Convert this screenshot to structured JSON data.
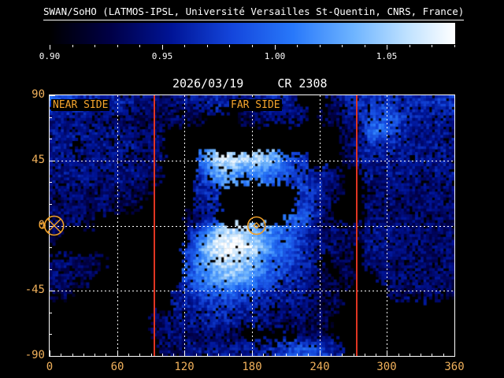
{
  "figure": {
    "title": "SWAN/SoHO (LATMOS-IPSL, Université Versailles St-Quentin, CNRS, France)",
    "date": "2026/03/19",
    "carrington_rotation": "CR 2308"
  },
  "labels": {
    "near_side": "NEAR SIDE",
    "far_side": "FAR SIDE"
  },
  "colors": {
    "background": "#000000",
    "frame": "#ffffff",
    "title_text": "#ffffff",
    "axis_text": "#f2b25c",
    "side_label": "#f5a52e",
    "marker": "#f0a028",
    "red_line": "#e03522",
    "gridline": "#ffffff"
  },
  "colorbar": {
    "min": 0.9,
    "max": 1.08,
    "tick_values": [
      0.9,
      0.95,
      1.0,
      1.05
    ],
    "tick_labels": [
      "0.90",
      "0.95",
      "1.00",
      "1.05"
    ],
    "minor_tick_step": 0.01
  },
  "axes": {
    "x": {
      "min": 0,
      "max": 360,
      "ticks": [
        0,
        60,
        120,
        180,
        240,
        300,
        360
      ],
      "tick_labels": [
        "0",
        "60",
        "120",
        "180",
        "240",
        "300",
        "360"
      ],
      "minor_step": 10,
      "gridlines": [
        60,
        120,
        180,
        240,
        300
      ]
    },
    "y": {
      "min": -90,
      "max": 90,
      "ticks": [
        90,
        45,
        0,
        -45,
        -90
      ],
      "tick_labels": [
        "90",
        "45",
        "0",
        "-45",
        "-90"
      ],
      "minor_step": 15,
      "gridlines": [
        45,
        0,
        -45
      ]
    }
  },
  "chart_data": {
    "type": "heatmap",
    "lon_bin_deg": 10,
    "lat_start": 90,
    "lat_bin_deg": -10,
    "value_range": [
      0.9,
      1.08
    ],
    "no_data_value": 0,
    "values": [
      [
        0.99,
        0.98,
        0.97,
        0.96,
        0.96,
        0.96,
        0.96,
        0.95,
        0.95,
        0.94,
        0.94,
        0.95,
        0.95,
        0.95,
        0.96,
        0.96,
        0.95,
        0.95,
        0.95,
        0.96,
        0.96,
        0.95,
        0,
        0,
        0,
        0.94,
        0.96,
        0.96,
        0.97,
        0.97,
        0.97,
        0.96,
        0.96,
        0.97,
        0.97,
        0.97
      ],
      [
        0.95,
        0.95,
        0.95,
        0.95,
        0.94,
        0.94,
        0.94,
        0.93,
        0.93,
        0.93,
        0.93,
        0.94,
        0.93,
        0.93,
        0,
        0,
        0,
        0.93,
        0.94,
        0.94,
        0.94,
        0.94,
        0.94,
        0,
        0.93,
        0.93,
        0.95,
        0.96,
        0.98,
        0.99,
        0.99,
        0.97,
        0.96,
        0.96,
        0.96,
        0.96
      ],
      [
        0.95,
        0.95,
        0.96,
        0.95,
        0.95,
        0.95,
        0.95,
        0.94,
        0.94,
        0.94,
        0,
        0,
        0,
        0,
        0,
        0,
        0,
        0,
        0,
        0,
        0,
        0,
        0,
        0,
        0,
        0,
        0.93,
        0.93,
        1.0,
        1.0,
        0.98,
        0.96,
        0.95,
        0.95,
        0.95,
        0.95
      ],
      [
        0.95,
        0.95,
        0,
        0.94,
        0.95,
        0.95,
        0.95,
        0.95,
        0.94,
        0.94,
        0,
        0,
        0,
        0,
        0,
        0,
        0,
        0,
        0,
        0,
        0,
        0,
        0,
        0,
        0,
        0,
        0.93,
        0.95,
        0.97,
        0.96,
        0.96,
        0.95,
        0.95,
        0.95,
        0.95,
        0.95
      ],
      [
        0.95,
        0.95,
        0.95,
        0.95,
        0.95,
        0.95,
        0.94,
        0.94,
        0.94,
        0.94,
        0,
        0,
        0,
        1.0,
        1.05,
        1.06,
        1.06,
        1.05,
        1.05,
        1.04,
        1.02,
        0.98,
        0.97,
        0,
        0,
        0,
        0.93,
        0.95,
        0.95,
        0.95,
        0.95,
        0.95,
        0.95,
        0.95,
        0.95,
        0.95
      ],
      [
        0.95,
        0.95,
        0.95,
        0.95,
        0.94,
        0.94,
        0.95,
        0.95,
        0.94,
        0.93,
        0,
        0,
        0,
        0.97,
        1.02,
        1.03,
        1.02,
        1.01,
        1.02,
        1.0,
        0.99,
        0.98,
        0.97,
        0.95,
        0.96,
        0.94,
        0,
        0,
        0.95,
        0.95,
        0.95,
        0.95,
        0.95,
        0.94,
        0.95,
        0.95
      ],
      [
        0.94,
        0.94,
        0.94,
        0.94,
        0.94,
        0.94,
        0.94,
        0.93,
        0.93,
        0,
        0,
        0,
        0,
        0.96,
        0.97,
        0,
        0,
        0,
        0,
        0,
        0,
        0,
        0.98,
        0.98,
        0.95,
        0.93,
        0,
        0,
        0.94,
        0.94,
        0.94,
        0.94,
        0.94,
        0.94,
        0.94,
        0.94
      ],
      [
        0.94,
        0.94,
        0.94,
        0.93,
        0.94,
        0.94,
        0.93,
        0.93,
        0,
        0,
        0,
        0,
        0,
        0.95,
        0.96,
        0,
        0,
        0,
        0,
        0,
        0,
        0,
        0.97,
        0.96,
        0.94,
        0,
        0,
        0,
        0.94,
        0.94,
        0.94,
        0.94,
        0.94,
        0.94,
        0.94,
        0.94
      ],
      [
        0.94,
        0.94,
        0.94,
        0.93,
        0,
        0,
        0,
        0,
        0,
        0,
        0,
        0,
        0.93,
        0.95,
        0.96,
        0,
        0,
        0,
        0,
        0,
        0,
        1.0,
        1.0,
        0.97,
        0.93,
        0,
        0,
        0,
        0.94,
        0.94,
        0.94,
        0.94,
        0.94,
        0.94,
        0.94,
        0.94
      ],
      [
        0.93,
        0,
        0,
        0,
        0,
        0,
        0,
        0,
        0,
        0,
        0,
        0,
        0.96,
        1.0,
        1.04,
        1.06,
        1.06,
        1.05,
        1.04,
        1.02,
        1.0,
        0.99,
        0.97,
        0.95,
        0.94,
        0.94,
        0.94,
        0.93,
        0.95,
        0.95,
        0.95,
        0.94,
        0.94,
        0.94,
        0.94,
        0.94
      ],
      [
        0,
        0,
        0,
        0,
        0,
        0,
        0,
        0,
        0,
        0,
        0,
        0,
        0.97,
        1.03,
        1.06,
        1.08,
        1.08,
        1.07,
        1.05,
        1.02,
        1.0,
        0.99,
        0.97,
        0.95,
        0.94,
        0.94,
        0.93,
        0,
        0.95,
        0.95,
        0.94,
        0.94,
        0.94,
        0.94,
        0.94,
        0.94
      ],
      [
        0.94,
        0.94,
        0.94,
        0.93,
        0.93,
        0,
        0,
        0,
        0,
        0,
        0,
        0,
        0.99,
        1.02,
        1.04,
        1.06,
        1.06,
        1.05,
        1.03,
        1.0,
        0.99,
        0.98,
        0.97,
        0.95,
        0,
        0.93,
        0.93,
        0,
        0.94,
        0.94,
        0.94,
        0.94,
        0.94,
        0.94,
        0.94,
        0.94
      ],
      [
        0.94,
        0.94,
        0.93,
        0.93,
        0,
        0,
        0,
        0,
        0,
        0,
        0,
        0,
        0.99,
        1.01,
        1.03,
        1.04,
        1.04,
        1.03,
        1.01,
        0.99,
        0.98,
        0.97,
        0.96,
        0.94,
        0.93,
        0,
        0.93,
        0,
        0,
        0.94,
        0.94,
        0.94,
        0.94,
        0.94,
        0.94,
        0.94
      ],
      [
        0.93,
        0.93,
        0,
        0,
        0,
        0,
        0,
        0,
        0,
        0,
        0,
        0.95,
        0.97,
        0.99,
        1.0,
        1.0,
        1.0,
        0.99,
        0.98,
        0.97,
        0.96,
        0.96,
        0.95,
        0.94,
        0.93,
        0.93,
        0,
        0,
        0,
        0,
        0.94,
        0.94,
        0.94,
        0.94,
        0.94,
        0.93
      ],
      [
        0,
        0,
        0,
        0,
        0,
        0,
        0,
        0,
        0,
        0,
        0,
        0.95,
        0.96,
        0.96,
        0.97,
        0.97,
        0.97,
        0.96,
        0.96,
        0.95,
        0.95,
        0.95,
        0.94,
        0.94,
        0.93,
        0.93,
        0,
        0,
        0,
        0,
        0,
        0,
        0,
        0,
        0,
        0
      ],
      [
        0,
        0,
        0,
        0,
        0,
        0,
        0,
        0,
        0,
        0.93,
        0.94,
        0.95,
        0.95,
        0.96,
        0.96,
        0.96,
        0.96,
        0.95,
        0.95,
        0.94,
        0.94,
        0.94,
        0.94,
        0.93,
        0.93,
        0,
        0,
        0,
        0,
        0,
        0,
        0,
        0,
        0,
        0,
        0
      ],
      [
        0,
        0,
        0,
        0,
        0,
        0,
        0,
        0,
        0,
        0.93,
        0.94,
        0.94,
        0.94,
        0.94,
        0.94,
        0.94,
        0.93,
        0,
        0,
        0,
        0,
        0,
        0.93,
        0.93,
        0.93,
        0,
        0,
        0,
        0,
        0,
        0,
        0,
        0,
        0,
        0,
        0
      ],
      [
        0,
        0,
        0,
        0,
        0,
        0,
        0,
        0,
        0,
        0,
        0.94,
        0.94,
        0.95,
        0.95,
        0.95,
        0.95,
        0.95,
        0.95,
        0.96,
        0.96,
        0.97,
        0.98,
        0.99,
        0.99,
        0.97,
        0.95,
        0,
        0,
        0,
        0,
        0,
        0,
        0,
        0,
        0,
        0
      ]
    ],
    "colormap": {
      "stops": [
        [
          0,
          0,
          0,
          0
        ],
        [
          0.15,
          0,
          0,
          70
        ],
        [
          0.3,
          0,
          20,
          150
        ],
        [
          0.45,
          20,
          70,
          220
        ],
        [
          0.6,
          40,
          120,
          250
        ],
        [
          0.75,
          110,
          180,
          255
        ],
        [
          0.88,
          190,
          225,
          255
        ],
        [
          1,
          255,
          255,
          255
        ]
      ]
    },
    "boundary_lines_lon": [
      93,
      273
    ],
    "markers": [
      {
        "lon": 4,
        "lat": 0,
        "symbol": "circle-cross"
      },
      {
        "lon": 184,
        "lat": 0,
        "symbol": "circle-diamond"
      }
    ]
  }
}
